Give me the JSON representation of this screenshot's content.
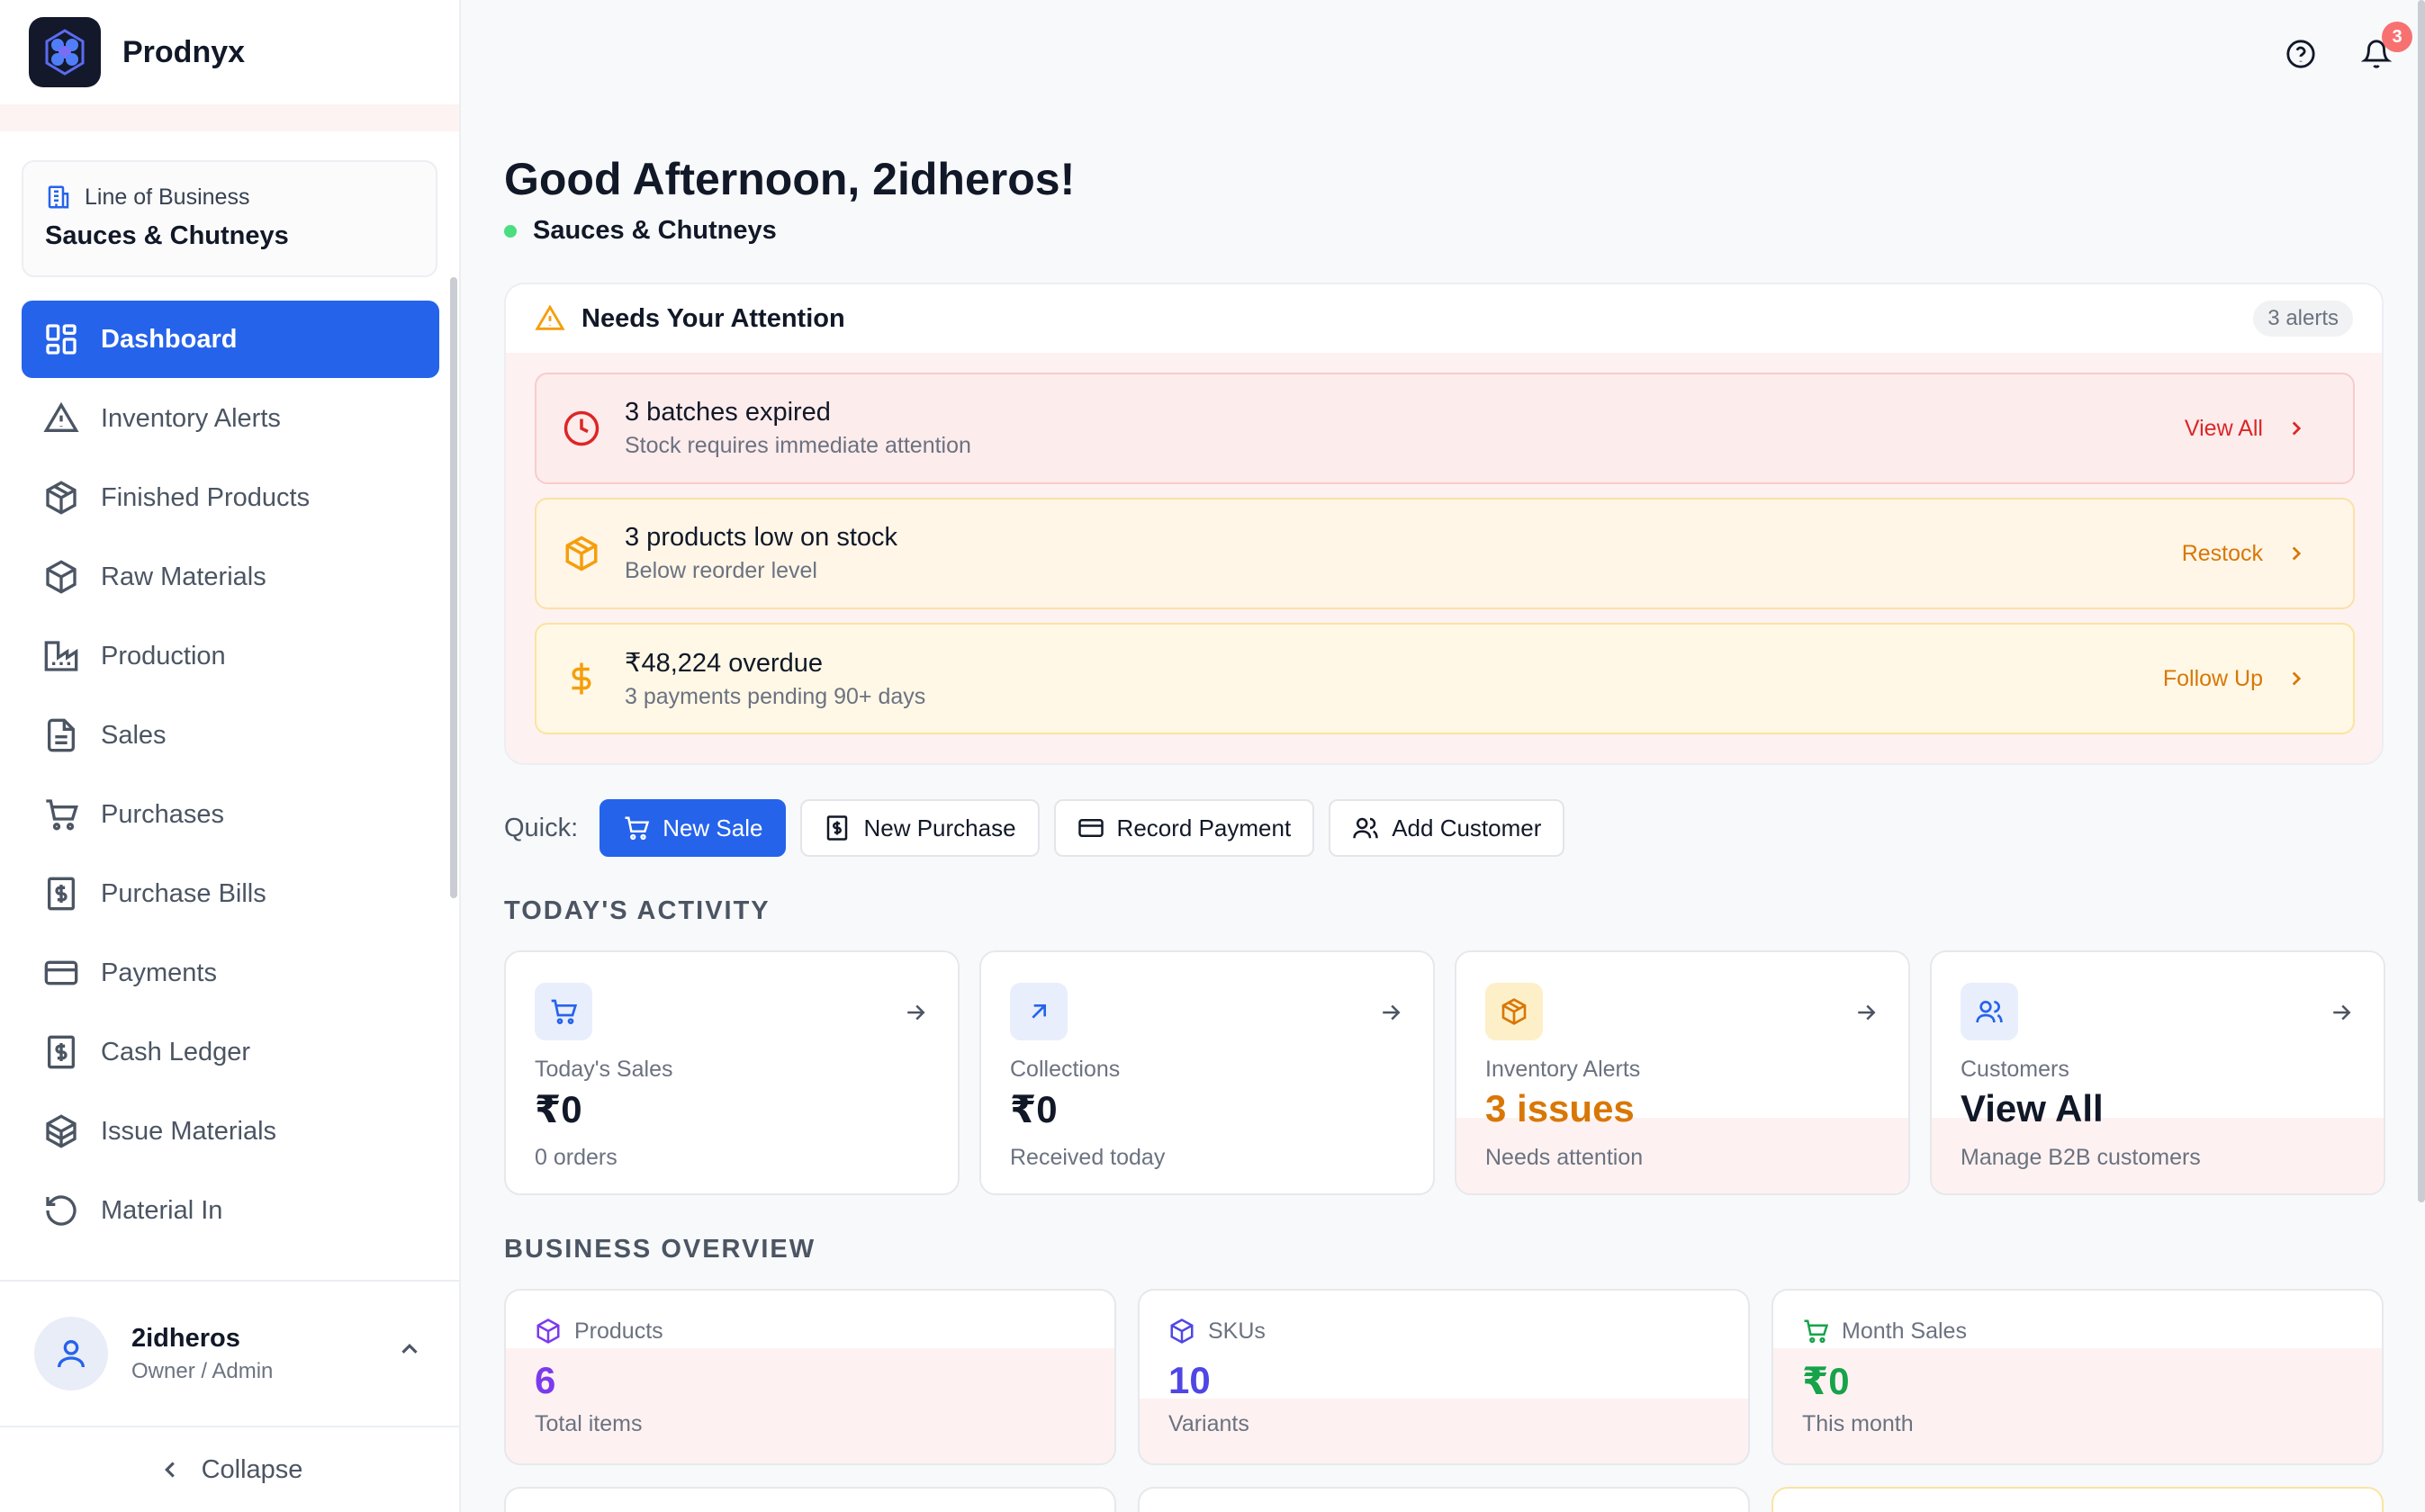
{
  "app": {
    "name": "Prodnyx"
  },
  "line_of_business": {
    "label": "Line of Business",
    "value": "Sauces & Chutneys"
  },
  "nav": [
    {
      "label": "Dashboard",
      "icon": "dashboard-icon",
      "active": true
    },
    {
      "label": "Inventory Alerts",
      "icon": "warning-icon"
    },
    {
      "label": "Finished Products",
      "icon": "box-icon"
    },
    {
      "label": "Raw Materials",
      "icon": "box-icon"
    },
    {
      "label": "Production",
      "icon": "factory-icon"
    },
    {
      "label": "Sales",
      "icon": "file-icon"
    },
    {
      "label": "Purchases",
      "icon": "cart-icon"
    },
    {
      "label": "Purchase Bills",
      "icon": "receipt-icon"
    },
    {
      "label": "Payments",
      "icon": "card-icon"
    },
    {
      "label": "Cash Ledger",
      "icon": "receipt-icon"
    },
    {
      "label": "Issue Materials",
      "icon": "boxes-icon"
    },
    {
      "label": "Material In",
      "icon": "rotate-icon"
    }
  ],
  "user": {
    "name": "2idheros",
    "role": "Owner / Admin"
  },
  "collapse_label": "Collapse",
  "notifications": {
    "count": "3"
  },
  "greeting": "Good Afternoon, 2idheros!",
  "current_lob": "Sauces & Chutneys",
  "attention": {
    "title": "Needs Your Attention",
    "count_label": "3 alerts",
    "alerts": [
      {
        "title": "3 batches expired",
        "subtitle": "Stock requires immediate attention",
        "action": "View All",
        "color": "#dc2626"
      },
      {
        "title": "3 products low on stock",
        "subtitle": "Below reorder level",
        "action": "Restock",
        "color": "#d97706"
      },
      {
        "title": "₹48,224 overdue",
        "subtitle": "3 payments pending 90+ days",
        "action": "Follow Up",
        "color": "#d97706"
      }
    ]
  },
  "quick": {
    "label": "Quick:",
    "buttons": [
      "New Sale",
      "New Purchase",
      "Record Payment",
      "Add Customer"
    ]
  },
  "todays_activity": {
    "title": "TODAY'S ACTIVITY",
    "cards": [
      {
        "label": "Today's Sales",
        "value": "₹0",
        "sub": "0 orders"
      },
      {
        "label": "Collections",
        "value": "₹0",
        "sub": "Received today"
      },
      {
        "label": "Inventory Alerts",
        "value": "3 issues",
        "sub": "Needs attention",
        "value_color": "#d97706"
      },
      {
        "label": "Customers",
        "value": "View All",
        "sub": "Manage B2B customers"
      }
    ]
  },
  "business_overview": {
    "title": "BUSINESS OVERVIEW",
    "cards": [
      {
        "label": "Products",
        "value": "6",
        "sub": "Total items",
        "color": "#7c3aed"
      },
      {
        "label": "SKUs",
        "value": "10",
        "sub": "Variants",
        "color": "#4f46e5"
      },
      {
        "label": "Month Sales",
        "value": "₹0",
        "sub": "This month",
        "color": "#16a34a"
      }
    ]
  }
}
